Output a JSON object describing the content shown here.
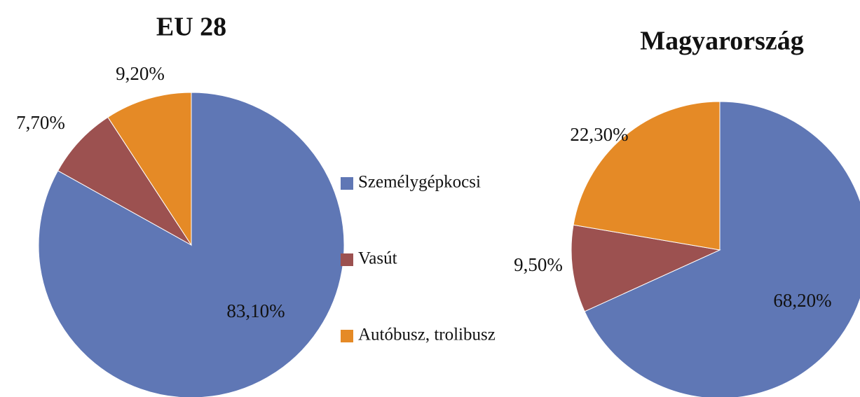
{
  "legend": {
    "items": [
      "Személygépkocsi",
      "Vasút",
      "Autóbusz, trolibusz"
    ]
  },
  "chart_data": [
    {
      "type": "pie",
      "title": "EU 28",
      "values": [
        83.1,
        7.7,
        9.2
      ],
      "value_labels": [
        "83,10%",
        "7,70%",
        "9,20%"
      ],
      "colors": [
        "#5f77b5",
        "#9c5150",
        "#e58a26"
      ]
    },
    {
      "type": "pie",
      "title": "Magyarország",
      "values": [
        68.2,
        9.5,
        22.3
      ],
      "value_labels": [
        "68,20%",
        "9,50%",
        "22,30%"
      ],
      "colors": [
        "#5f77b5",
        "#9c5150",
        "#e58a26"
      ]
    }
  ]
}
